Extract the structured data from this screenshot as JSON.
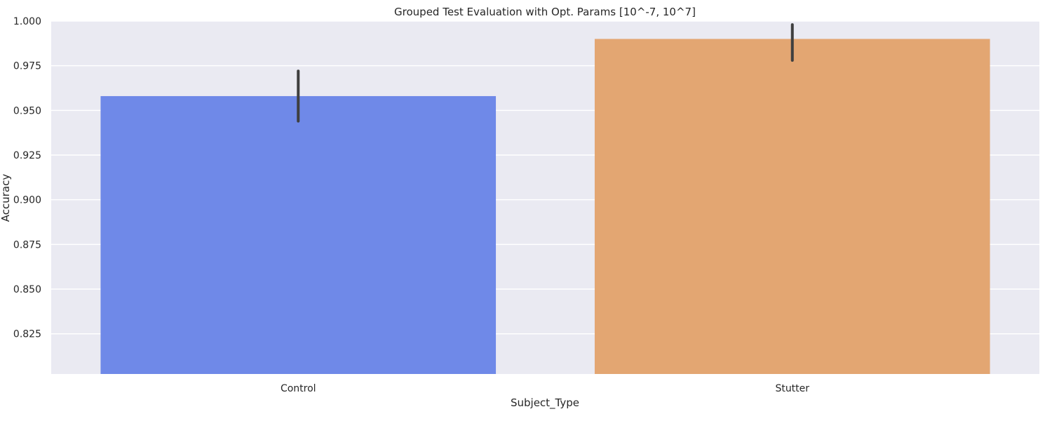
{
  "chart_data": {
    "type": "bar",
    "title": "Grouped Test Evaluation with Opt. Params [10^-7, 10^7]",
    "xlabel": "Subject_Type",
    "ylabel": "Accuracy",
    "categories": [
      "Control",
      "Stutter"
    ],
    "values": [
      0.958,
      0.99
    ],
    "error_bars": [
      {
        "low": 0.944,
        "high": 0.972
      },
      {
        "low": 0.978,
        "high": 0.998
      }
    ],
    "colors": [
      "#6f89e8",
      "#e3a672"
    ],
    "ylim": [
      0.8025,
      1.0
    ],
    "yticks": [
      0.825,
      0.85,
      0.875,
      0.9,
      0.925,
      0.95,
      0.975,
      1.0
    ],
    "ytick_labels": [
      "0.825",
      "0.850",
      "0.875",
      "0.900",
      "0.925",
      "0.950",
      "0.975",
      "1.000"
    ],
    "grid": true,
    "background": "#eaeaf2",
    "errorbar_color": "#3f3f3f"
  }
}
